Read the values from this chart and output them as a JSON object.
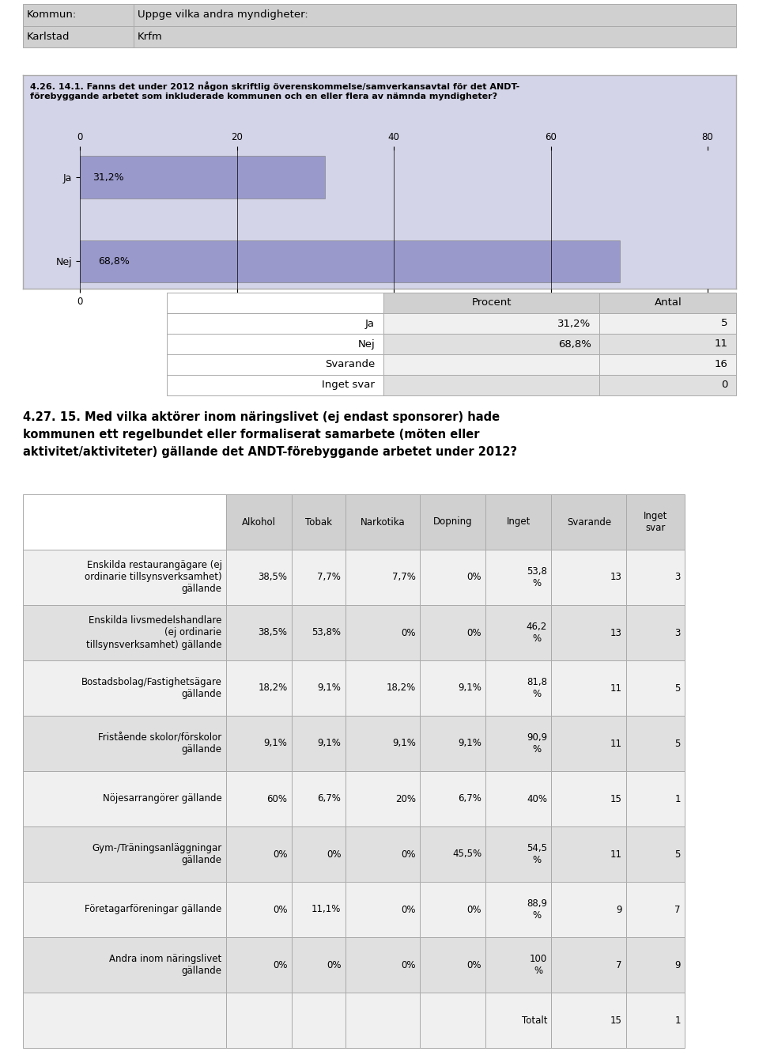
{
  "top_table": {
    "headers": [
      "Kommun:",
      "Uppge vilka andra myndigheter:"
    ],
    "rows": [
      [
        "Karlstad",
        "Krfm"
      ]
    ]
  },
  "chart_title": "4.26. 14.1. Fanns det under 2012 någon skriftlig överenskommelse/samverkansavtal för det ANDT-\nförebyggande arbetet som inkluderade kommunen och en eller flera av nämnda myndigheter?",
  "bar_categories": [
    "Ja",
    "Nej"
  ],
  "bar_values": [
    31.2,
    68.8
  ],
  "bar_color": "#9999cc",
  "bar_xlim": [
    0,
    80
  ],
  "bar_xticks": [
    0,
    20,
    40,
    60,
    80
  ],
  "summary_table": {
    "col_headers": [
      "",
      "Procent",
      "Antal"
    ],
    "rows": [
      [
        "Ja",
        "31,2%",
        "5"
      ],
      [
        "Nej",
        "68,8%",
        "11"
      ],
      [
        "Svarande",
        "",
        "16"
      ],
      [
        "Inget svar",
        "",
        "0"
      ]
    ]
  },
  "section_title": "4.27. 15. Med vilka aktörer inom näringslivet (ej endast sponsorer) hade\nkommunen ett regelbundet eller formaliserat samarbete (möten eller\naktivitet/aktiviteter) gällande det ANDT-förebyggande arbetet under 2012?",
  "main_table": {
    "col_headers": [
      "",
      "Alkohol",
      "Tobak",
      "Narkotika",
      "Dopning",
      "Inget",
      "Svarande",
      "Inget\nsvar"
    ],
    "rows": [
      [
        "Enskilda restaurangägare (ej\nordinarie tillsynsverksamhet)\ngällande",
        "38,5%",
        "7,7%",
        "7,7%",
        "0%",
        "53,8\n%",
        "13",
        "3"
      ],
      [
        "Enskilda livsmedelshandlare\n(ej ordinarie\ntillsynsverksamhet) gällande",
        "38,5%",
        "53,8%",
        "0%",
        "0%",
        "46,2\n%",
        "13",
        "3"
      ],
      [
        "Bostadsbolag/Fastighetsägare\ngällande",
        "18,2%",
        "9,1%",
        "18,2%",
        "9,1%",
        "81,8\n%",
        "11",
        "5"
      ],
      [
        "Fristående skolor/förskolor\ngällande",
        "9,1%",
        "9,1%",
        "9,1%",
        "9,1%",
        "90,9\n%",
        "11",
        "5"
      ],
      [
        "Nöjesarrangörer gällande",
        "60%",
        "6,7%",
        "20%",
        "6,7%",
        "40%",
        "15",
        "1"
      ],
      [
        "Gym-/Träningsanläggningar\ngällande",
        "0%",
        "0%",
        "0%",
        "45,5%",
        "54,5\n%",
        "11",
        "5"
      ],
      [
        "Företagarföreningar gällande",
        "0%",
        "11,1%",
        "0%",
        "0%",
        "88,9\n%",
        "9",
        "7"
      ],
      [
        "Andra inom näringslivet\ngällande",
        "0%",
        "0%",
        "0%",
        "0%",
        "100\n%",
        "7",
        "9"
      ],
      [
        "",
        "",
        "",
        "",
        "",
        "Totalt",
        "15",
        "1"
      ]
    ]
  },
  "bg_color": "#f0f0f0",
  "chart_bg": "#d4d4e8",
  "table_header_bg": "#d0d0d0",
  "table_row_bg1": "#f0f0f0",
  "table_row_bg2": "#e0e0e0",
  "border_color": "#aaaaaa",
  "white": "#ffffff"
}
